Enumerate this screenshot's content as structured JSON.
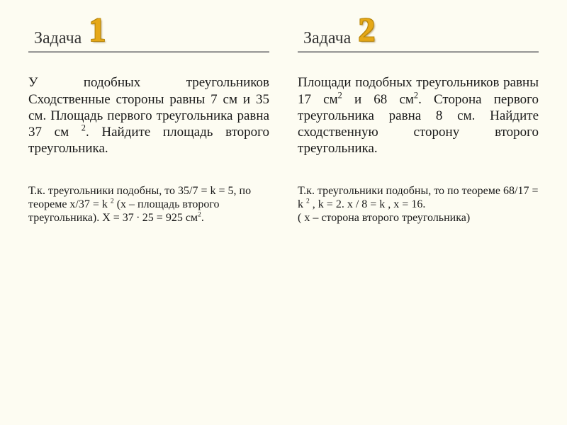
{
  "colors": {
    "background": "#fdfcf2",
    "text": "#1a1a1a",
    "header_text": "#333333",
    "underline": "#888888",
    "number_fill": "#e6a817",
    "number_stroke": "#b8860b"
  },
  "typography": {
    "header_fontsize": 24,
    "problem_fontsize": 19,
    "solution_fontsize": 16,
    "number_fontsize": 48,
    "font_family": "Times New Roman"
  },
  "problems": [
    {
      "header_label": "Задача",
      "number": "1",
      "problem_html": "У подобных треугольников Сходственные стороны равны 7 см и 35 см. Площадь первого треугольника равна 37 см <sup>2</sup>. Найдите площадь второго треугольника.",
      "solution_html": "Т.к. треугольники подобны, то 35/7 = k = 5, по теореме x/37 = k <sup>2</sup> (x – площадь второго треугольника). X = 37 ∙ 25 = 925 см<sup>2</sup>."
    },
    {
      "header_label": "Задача",
      "number": "2",
      "problem_html": "Площади подобных треугольников равны 17 см<sup>2</sup> и 68 см<sup>2</sup>. Сторона первого треугольника равна 8 см. Найдите сходственную сторону второго треугольника.",
      "solution_html": "Т.к. треугольники подобны, то по теореме 68/17 = k <sup>2</sup> , k = 2.  x / 8 = k , x = 16.<br>( x – сторона второго треугольника)"
    }
  ]
}
